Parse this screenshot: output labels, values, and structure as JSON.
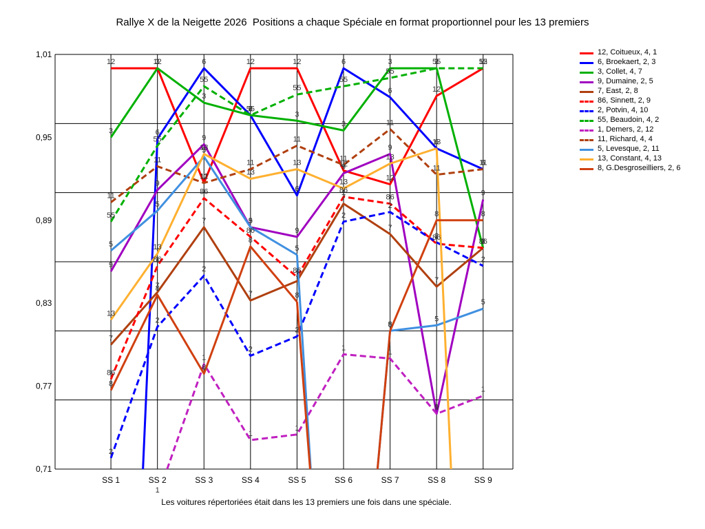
{
  "chart_data": {
    "type": "line",
    "title": "Rallye X de la Neigette 2026  Positions a chaque Spéciale en format proportionnel pour les 13 premiers",
    "footnote": "Les voitures répertoriées était dans les 13 premiers une fois dans une spéciale.",
    "xlabel": "",
    "ylabel": "",
    "categories": [
      "SS 1",
      "SS 2",
      "SS 3",
      "SS 4",
      "SS 5",
      "SS 6",
      "SS 7",
      "SS 8",
      "SS 9"
    ],
    "ylim": [
      0.71,
      1.01
    ],
    "yticks": [
      "1,01",
      "0,95",
      "0,89",
      "0,83",
      "0,77",
      "0,71"
    ],
    "grid": true,
    "legend_position": "right",
    "series": [
      {
        "name": "12, Coitueux, 4, 1",
        "label": "12",
        "color": "#ff0000",
        "dash": false,
        "values": [
          1.0,
          1.0,
          0.917,
          1.0,
          1.0,
          0.926,
          0.916,
          0.98,
          1.0
        ]
      },
      {
        "name": "6, Broekaert, 2, 3",
        "label": "6",
        "color": "#0000ff",
        "dash": false,
        "values": [
          null,
          0.949,
          1.0,
          0.966,
          0.908,
          1.0,
          0.979,
          0.942,
          0.927
        ]
      },
      {
        "name": "3, Collet, 4, 7",
        "label": "3",
        "color": "#00b000",
        "dash": false,
        "values": [
          0.95,
          1.0,
          0.975,
          0.966,
          0.962,
          0.955,
          1.0,
          1.0,
          0.87
        ]
      },
      {
        "name": "9, Dumaine, 2, 5",
        "label": "9",
        "color": "#a000c0",
        "dash": false,
        "values": [
          0.853,
          0.912,
          0.945,
          0.885,
          0.878,
          0.924,
          0.938,
          0.75,
          0.905
        ]
      },
      {
        "name": "7, East, 2, 8",
        "label": "7",
        "color": "#b04010",
        "dash": false,
        "values": [
          0.8,
          0.838,
          0.885,
          0.832,
          0.846,
          0.902,
          0.88,
          0.842,
          0.87
        ]
      },
      {
        "name": "86, Sinnett, 2, 9",
        "label": "86",
        "color": "#ff0000",
        "dash": true,
        "values": [
          0.775,
          0.857,
          0.906,
          0.878,
          0.849,
          0.907,
          0.902,
          0.873,
          0.87
        ]
      },
      {
        "name": "2, Potvin, 4, 10",
        "label": "2",
        "color": "#0000ff",
        "dash": true,
        "values": [
          0.718,
          0.813,
          0.85,
          0.792,
          0.806,
          0.889,
          0.896,
          0.874,
          0.857
        ]
      },
      {
        "name": "55, Beaudoin, 4, 2",
        "label": "55",
        "color": "#00b000",
        "dash": true,
        "values": [
          0.889,
          0.944,
          0.987,
          0.966,
          0.981,
          0.987,
          0.993,
          1.0,
          1.0
        ]
      },
      {
        "name": "1, Demers, 2, 12",
        "label": "1",
        "color": "#c020c0",
        "dash": true,
        "values": [
          null,
          0.69,
          0.786,
          0.731,
          0.735,
          0.793,
          0.79,
          0.75,
          0.763
        ]
      },
      {
        "name": "11, Richard, 4, 4",
        "label": "11",
        "color": "#b04010",
        "dash": true,
        "values": [
          0.903,
          0.929,
          0.917,
          0.927,
          0.944,
          0.93,
          0.956,
          0.923,
          0.927
        ]
      },
      {
        "name": "5, Levesque, 2, 11",
        "label": "5",
        "color": "#4090e0",
        "dash": false,
        "values": [
          0.868,
          0.897,
          0.936,
          0.885,
          0.865,
          null,
          0.81,
          0.814,
          0.826
        ]
      },
      {
        "name": "13, Constant, 4, 13",
        "label": "13",
        "color": "#ffb030",
        "dash": false,
        "values": [
          0.818,
          0.866,
          0.938,
          0.92,
          0.927,
          0.913,
          0.931,
          0.942,
          null
        ]
      },
      {
        "name": "8, G.Desgroseilliers, 2, 6",
        "label": "8",
        "color": "#d04010",
        "dash": false,
        "values": [
          0.767,
          0.836,
          0.779,
          0.871,
          0.831,
          null,
          0.81,
          0.89,
          0.89
        ]
      }
    ]
  }
}
